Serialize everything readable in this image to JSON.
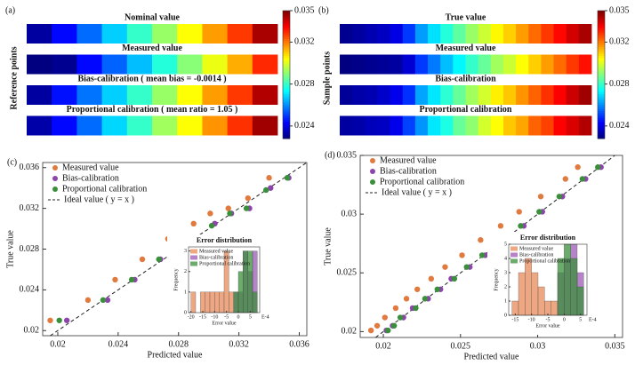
{
  "chart_data": [
    {
      "type": "heatmap",
      "panel": "(a)",
      "ylabel": "Reference points",
      "zlim": [
        0.0228,
        0.035
      ],
      "zticks": [
        0.024,
        0.028,
        0.032,
        0.035
      ],
      "rows": [
        {
          "title": "Nominal value",
          "values": [
            0.0232,
            0.0244,
            0.0256,
            0.0268,
            0.028,
            0.0292,
            0.0304,
            0.0316,
            0.0328,
            0.0345
          ]
        },
        {
          "title": "Measured value",
          "values": [
            0.0228,
            0.023,
            0.0244,
            0.0255,
            0.0266,
            0.0278,
            0.029,
            0.0302,
            0.0314,
            0.033
          ]
        },
        {
          "title": "Bias-calibration ( mean bias = -0.0014 )",
          "values": [
            0.0232,
            0.0245,
            0.0257,
            0.0268,
            0.028,
            0.0292,
            0.0304,
            0.0316,
            0.0328,
            0.0344
          ]
        },
        {
          "title": "Proportional calibration ( mean ratio = 1.05 )",
          "values": [
            0.0233,
            0.0244,
            0.0256,
            0.0269,
            0.028,
            0.0293,
            0.0304,
            0.0317,
            0.0329,
            0.0346
          ]
        }
      ]
    },
    {
      "type": "heatmap",
      "panel": "(b)",
      "ylabel": "Sample points",
      "zlim": [
        0.0228,
        0.035
      ],
      "zticks": [
        0.024,
        0.028,
        0.032,
        0.035
      ],
      "rows": [
        {
          "title": "True value",
          "values": [
            0.023,
            0.0232,
            0.0234,
            0.0236,
            0.024,
            0.025,
            0.0262,
            0.027,
            0.0278,
            0.0285,
            0.0292,
            0.0298,
            0.0305,
            0.031,
            0.0316,
            0.0322,
            0.0328,
            0.0334,
            0.034,
            0.0345
          ]
        },
        {
          "title": "Measured value",
          "values": [
            0.0228,
            0.0229,
            0.023,
            0.0231,
            0.0232,
            0.0238,
            0.025,
            0.0258,
            0.0266,
            0.0273,
            0.028,
            0.0286,
            0.0293,
            0.0298,
            0.0304,
            0.031,
            0.0316,
            0.0322,
            0.0328,
            0.0333
          ]
        },
        {
          "title": "Bias-calibration",
          "values": [
            0.0231,
            0.0233,
            0.0234,
            0.0237,
            0.0241,
            0.0249,
            0.0263,
            0.0271,
            0.0279,
            0.0286,
            0.0293,
            0.0299,
            0.0306,
            0.0311,
            0.0317,
            0.0323,
            0.0329,
            0.0335,
            0.0341,
            0.0346
          ]
        },
        {
          "title": "Proportional calibration",
          "values": [
            0.0232,
            0.0233,
            0.0235,
            0.0236,
            0.0241,
            0.0251,
            0.0261,
            0.0271,
            0.0277,
            0.0286,
            0.0291,
            0.0299,
            0.0304,
            0.0311,
            0.0315,
            0.0323,
            0.0327,
            0.0335,
            0.0339,
            0.0344
          ]
        }
      ]
    },
    {
      "type": "scatter",
      "panel": "(c)",
      "xlabel": "Predicted value",
      "ylabel": "True value",
      "xlim": [
        0.019,
        0.0365
      ],
      "ylim": [
        0.0195,
        0.0365
      ],
      "xticks": [
        0.02,
        0.024,
        0.028,
        0.032,
        0.036
      ],
      "yticks": [
        0.02,
        0.024,
        0.028,
        0.032,
        0.036
      ],
      "series": [
        {
          "name": "Measured value",
          "color": "#e07a3f",
          "x": [
            0.0195,
            0.022,
            0.0238,
            0.0256,
            0.0273,
            0.029,
            0.0301,
            0.0313,
            0.0326,
            0.034
          ],
          "values": [
            0.021,
            0.023,
            0.025,
            0.027,
            0.029,
            0.0305,
            0.0315,
            0.032,
            0.033,
            0.035
          ]
        },
        {
          "name": "Bias-calibration",
          "color": "#8e44ad",
          "x": [
            0.0206,
            0.0233,
            0.0251,
            0.0268,
            0.0285,
            0.0304,
            0.0315,
            0.0327,
            0.0341,
            0.0353
          ],
          "values": [
            0.021,
            0.023,
            0.025,
            0.027,
            0.0285,
            0.0305,
            0.0315,
            0.032,
            0.034,
            0.035
          ]
        },
        {
          "name": "Proportional calibration",
          "color": "#3a8f3a",
          "x": [
            0.0201,
            0.023,
            0.0249,
            0.0267,
            0.0287,
            0.0302,
            0.0314,
            0.0325,
            0.0338,
            0.0352
          ],
          "values": [
            0.021,
            0.023,
            0.025,
            0.027,
            0.0285,
            0.0303,
            0.0315,
            0.032,
            0.0338,
            0.035
          ]
        }
      ],
      "ideal": "Ideal value ( y = x )",
      "inset": {
        "type": "histogram",
        "title": "Error distribution",
        "xlabel": "Error value",
        "ylabel": "Frequency",
        "note": "E-4",
        "bins": [
          -20,
          -18,
          -16,
          -14,
          -12,
          -10,
          -8,
          -6,
          -4,
          -2,
          0,
          2,
          4,
          6,
          8
        ],
        "xlim": [
          -21,
          9
        ],
        "ylim": [
          0,
          3.2
        ],
        "xticks": [
          -20,
          -15,
          -10,
          -5,
          0,
          5
        ],
        "yticks": [
          0,
          1,
          2,
          3
        ],
        "series": [
          {
            "name": "Measured value",
            "color": "#e8895a",
            "values": [
              1,
              0,
              1,
              1,
              1,
              1,
              1,
              3,
              1,
              0,
              0,
              0,
              0,
              0
            ]
          },
          {
            "name": "Bias-calibration",
            "color": "#9b59b6",
            "values": [
              0,
              0,
              0,
              0,
              0,
              0,
              0,
              0,
              0,
              1,
              1,
              3,
              2,
              3
            ]
          },
          {
            "name": "Proportional calibration",
            "color": "#3a8f3a",
            "values": [
              0,
              0,
              0,
              0,
              0,
              0,
              0,
              0,
              0,
              1,
              2,
              3,
              3,
              1
            ]
          }
        ]
      }
    },
    {
      "type": "scatter",
      "panel": "(d)",
      "xlabel": "Predicted value",
      "ylabel": "True value",
      "xlim": [
        0.0185,
        0.0355
      ],
      "ylim": [
        0.0195,
        0.035
      ],
      "xticks": [
        0.02,
        0.025,
        0.03,
        0.035
      ],
      "yticks": [
        0.02,
        0.025,
        0.03,
        0.035
      ],
      "series": [
        {
          "name": "Measured value",
          "color": "#e07a3f",
          "x": [
            0.0192,
            0.0196,
            0.0201,
            0.0208,
            0.0215,
            0.0222,
            0.0231,
            0.024,
            0.0251,
            0.0263,
            0.0276,
            0.0288,
            0.0302,
            0.0318,
            0.0326
          ],
          "values": [
            0.0201,
            0.0205,
            0.0212,
            0.022,
            0.0228,
            0.0236,
            0.0245,
            0.0255,
            0.0265,
            0.0278,
            0.029,
            0.0302,
            0.0315,
            0.033,
            0.034
          ]
        },
        {
          "name": "Bias-calibration",
          "color": "#8e44ad",
          "x": [
            0.0202,
            0.0206,
            0.0213,
            0.0219,
            0.0229,
            0.0237,
            0.0244,
            0.0256,
            0.0266,
            0.0279,
            0.0291,
            0.0303,
            0.0316,
            0.0331,
            0.0341
          ],
          "values": [
            0.0201,
            0.0205,
            0.0212,
            0.022,
            0.0228,
            0.0236,
            0.0245,
            0.0255,
            0.0265,
            0.0278,
            0.029,
            0.0302,
            0.0315,
            0.033,
            0.034
          ]
        },
        {
          "name": "Proportional calibration",
          "color": "#3a8f3a",
          "x": [
            0.0203,
            0.0207,
            0.0211,
            0.0221,
            0.0227,
            0.0235,
            0.0246,
            0.0254,
            0.0264,
            0.0277,
            0.0289,
            0.0301,
            0.0314,
            0.0329,
            0.0339
          ],
          "values": [
            0.0201,
            0.0205,
            0.0212,
            0.022,
            0.0228,
            0.0236,
            0.0245,
            0.0255,
            0.0265,
            0.0278,
            0.029,
            0.0302,
            0.0315,
            0.033,
            0.034
          ]
        }
      ],
      "ideal": "Ideal value ( y = x )",
      "inset": {
        "type": "histogram",
        "title": "Error distribution",
        "xlabel": "Error value",
        "ylabel": "Frequency",
        "note": "E-4",
        "bins": [
          -16,
          -14,
          -12,
          -10,
          -8,
          -6,
          -4,
          -2,
          0,
          2,
          4,
          6
        ],
        "xlim": [
          -17,
          7
        ],
        "ylim": [
          0,
          5
        ],
        "xticks": [
          -15,
          -10,
          -5,
          0,
          5
        ],
        "yticks": [
          0,
          1,
          2,
          3,
          4,
          5
        ],
        "series": [
          {
            "name": "Measured value",
            "color": "#e8895a",
            "values": [
              1,
              3,
              4,
              3,
              2,
              1,
              1,
              0,
              0,
              0,
              0
            ]
          },
          {
            "name": "Bias-calibration",
            "color": "#9b59b6",
            "values": [
              0,
              0,
              0,
              0,
              0,
              0,
              0,
              3,
              4,
              5,
              3
            ]
          },
          {
            "name": "Proportional calibration",
            "color": "#3a8f3a",
            "values": [
              0,
              0,
              0,
              0,
              0,
              0,
              0,
              4,
              5,
              4,
              2
            ]
          }
        ]
      }
    }
  ]
}
